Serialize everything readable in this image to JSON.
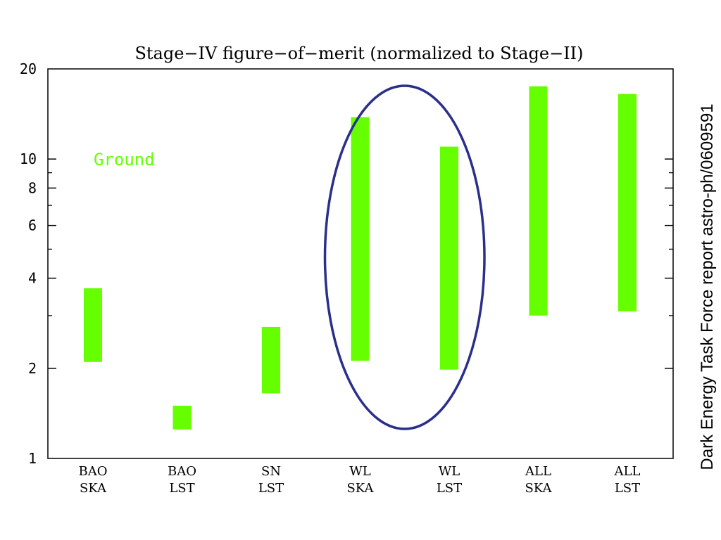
{
  "chart_data": {
    "type": "bar",
    "title": "Stage−IV figure−of−merit (normalized to Stage−II)",
    "xlabel": "",
    "ylabel": "",
    "y_scale": "log",
    "ylim": [
      1,
      20
    ],
    "y_ticks": [
      1,
      2,
      4,
      6,
      8,
      10,
      20
    ],
    "y_minor_ticks": [
      3,
      5,
      7,
      9
    ],
    "bar_color": "#66ff00",
    "categories": [
      {
        "line1": "BAO",
        "line2": "SKA"
      },
      {
        "line1": "BAO",
        "line2": "LST"
      },
      {
        "line1": "SN",
        "line2": "LST"
      },
      {
        "line1": "WL",
        "line2": "SKA"
      },
      {
        "line1": "WL",
        "line2": "LST"
      },
      {
        "line1": "ALL",
        "line2": "SKA"
      },
      {
        "line1": "ALL",
        "line2": "LST"
      }
    ],
    "ranges": [
      {
        "low": 2.1,
        "high": 3.7
      },
      {
        "low": 1.25,
        "high": 1.5
      },
      {
        "low": 1.65,
        "high": 2.75
      },
      {
        "low": 2.12,
        "high": 13.8
      },
      {
        "low": 1.98,
        "high": 11.0
      },
      {
        "low": 3.0,
        "high": 17.5
      },
      {
        "low": 3.1,
        "high": 16.5
      }
    ],
    "annotation": "Ground",
    "annotation_color": "#66ff00",
    "highlight": {
      "categories": [
        3,
        4
      ],
      "shape": "ellipse",
      "color": "#2a2f8a"
    }
  },
  "side_note": "Dark Energy Task Force report astro-ph/0609591"
}
